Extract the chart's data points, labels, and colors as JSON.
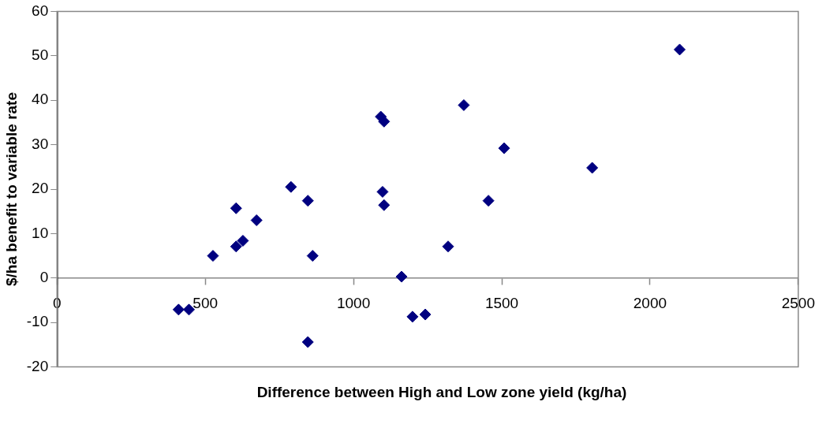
{
  "chart_data": {
    "type": "scatter",
    "xlabel": "Difference between High and Low zone yield (kg/ha)",
    "ylabel": "$/ha benefit to variable rate",
    "x": [
      410,
      445,
      526,
      604,
      604,
      627,
      673,
      789,
      846,
      862,
      846,
      1092,
      1103,
      1098,
      1103,
      1162,
      1199,
      1242,
      1319,
      1372,
      1455,
      1508,
      1805,
      2100
    ],
    "series": [
      {
        "color": "#000080",
        "values": [
          -7.1,
          -7.1,
          5.0,
          15.7,
          7.1,
          8.4,
          13.0,
          20.5,
          17.4,
          5.0,
          -14.4,
          36.3,
          35.2,
          19.4,
          16.4,
          0.3,
          -8.7,
          -8.2,
          7.1,
          38.9,
          17.4,
          29.2,
          24.8,
          51.4
        ]
      }
    ],
    "xlim": [
      0,
      2500
    ],
    "xticks": [
      0,
      500,
      1000,
      1500,
      2000,
      2500
    ],
    "ylim": [
      -20,
      60
    ],
    "yticks": [
      -20,
      -10,
      0,
      10,
      20,
      30,
      40,
      50,
      60
    ],
    "grid": false,
    "legend": false,
    "marker": "diamond"
  }
}
